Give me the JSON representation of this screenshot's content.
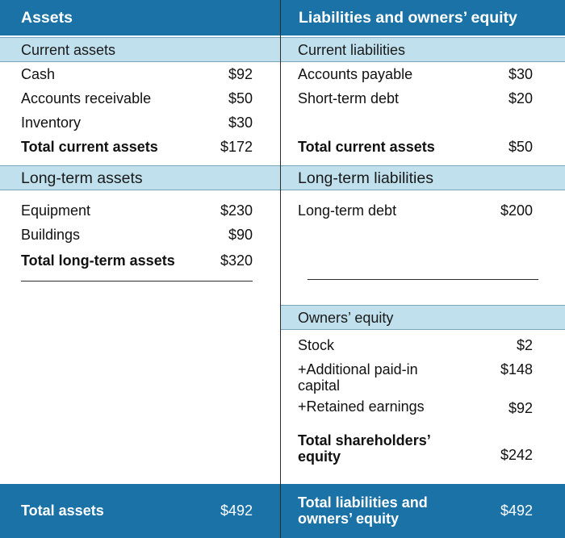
{
  "assets": {
    "header": "Assets",
    "current": {
      "title": "Current assets",
      "items": [
        {
          "label": "Cash",
          "value": "$92"
        },
        {
          "label": "Accounts receivable",
          "value": "$50"
        },
        {
          "label": "Inventory",
          "value": "$30"
        }
      ],
      "total": {
        "label": "Total current assets",
        "value": "$172"
      }
    },
    "long_term": {
      "title": "Long-term assets",
      "items": [
        {
          "label": "Equipment",
          "value": "$230"
        },
        {
          "label": "Buildings",
          "value": "$90"
        }
      ],
      "total": {
        "label": "Total long-term assets",
        "value": "$320"
      }
    },
    "footer": {
      "label": "Total assets",
      "value": "$492"
    }
  },
  "liabilities": {
    "header": "Liabilities and owners’ equity",
    "current": {
      "title": "Current liabilities",
      "items": [
        {
          "label": "Accounts payable",
          "value": "$30"
        },
        {
          "label": "Short-term debt",
          "value": "$20"
        }
      ],
      "total": {
        "label": "Total current assets",
        "value": "$50"
      }
    },
    "long_term": {
      "title": "Long-term liabilities",
      "items": [
        {
          "label": "Long-term debt",
          "value": "$200"
        }
      ]
    },
    "equity": {
      "title": "Owners’ equity",
      "items": [
        {
          "label": "Stock",
          "value": "$2"
        },
        {
          "label_line1": "+Additional paid-in",
          "label_line2": "capital",
          "value": "$148"
        },
        {
          "label": "+Retained earnings",
          "value": "$92"
        }
      ],
      "total": {
        "label_line1": "Total shareholders’",
        "label_line2": "equity",
        "value": "$242"
      }
    },
    "footer": {
      "label_line1": "Total liabilities and",
      "label_line2": "owners’ equity",
      "value": "$492"
    }
  }
}
